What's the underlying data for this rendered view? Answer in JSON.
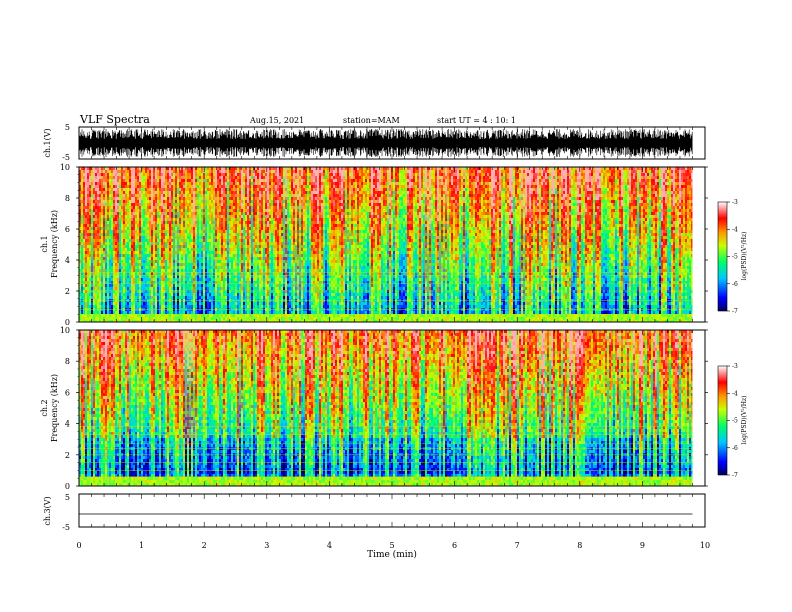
{
  "header": {
    "title": "VLF Spectra",
    "date": "Aug.15, 2021",
    "station": "station=MAM",
    "start": "start UT =  4 : 10: 1"
  },
  "chart_data": [
    {
      "type": "line",
      "panel": "ch1-waveform",
      "ylabel": "ch.1(V)",
      "ylim": [
        -5,
        5
      ],
      "yticks": [
        "5",
        "-5"
      ],
      "description_values": {
        "amplitude_range": [
          -5,
          5
        ]
      }
    },
    {
      "type": "heatmap",
      "panel": "ch1-spectrogram",
      "ylabel_line1": "ch.1",
      "ylabel_line2": "Frequency (kHz)",
      "ylim": [
        0,
        10
      ],
      "yticks": [
        "0",
        "2",
        "4",
        "6",
        "8",
        "10"
      ],
      "xlim": [
        0,
        10
      ],
      "colorbar": {
        "label": "log(PSD)(V²/Hz)",
        "range": [
          -7,
          -3
        ],
        "ticks": [
          "-3",
          "-4",
          "-5",
          "-6",
          "-7"
        ],
        "colormap": [
          "#000060",
          "#0000ff",
          "#00c8ff",
          "#00ff66",
          "#c8ff00",
          "#ff9900",
          "#ff0000",
          "#ffffff"
        ]
      }
    },
    {
      "type": "heatmap",
      "panel": "ch2-spectrogram",
      "ylabel_line1": "ch.2",
      "ylabel_line2": "Frequency (kHz)",
      "ylim": [
        0,
        10
      ],
      "yticks": [
        "0",
        "2",
        "4",
        "6",
        "8",
        "10"
      ],
      "xlim": [
        0,
        10
      ],
      "colorbar": {
        "label": "log(PSD)(V²/Hz)",
        "range": [
          -7,
          -3
        ],
        "ticks": [
          "-3",
          "-4",
          "-5",
          "-6",
          "-7"
        ],
        "colormap": [
          "#000060",
          "#0000ff",
          "#00c8ff",
          "#00ff66",
          "#c8ff00",
          "#ff9900",
          "#ff0000",
          "#ffffff"
        ]
      }
    },
    {
      "type": "line",
      "panel": "ch3-waveform",
      "ylabel": "ch.3(V)",
      "ylim": [
        -5,
        5
      ],
      "yticks": [
        "5",
        "-5"
      ],
      "x": [
        0,
        9.8
      ],
      "y": [
        -1,
        -1
      ]
    }
  ],
  "xaxis": {
    "label": "Time (min)",
    "ticks": [
      "0",
      "1",
      "2",
      "3",
      "4",
      "5",
      "6",
      "7",
      "8",
      "9",
      "10"
    ],
    "xlim": [
      0,
      10
    ]
  }
}
